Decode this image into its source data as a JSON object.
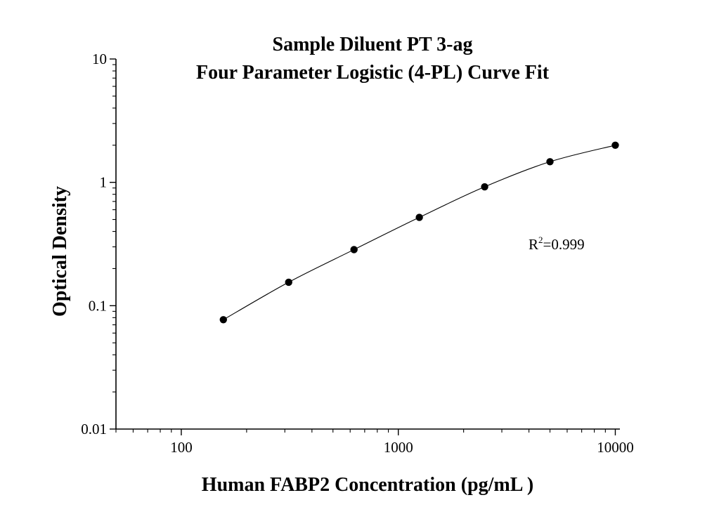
{
  "chart_data": {
    "type": "scatter",
    "title": [
      "Sample Diluent PT 3-ag",
      "Four Parameter Logistic (4-PL) Curve Fit"
    ],
    "xlabel": "Human FABP2 Concentration (pg/mL )",
    "ylabel": "Optical Density",
    "xscale": "log",
    "yscale": "log",
    "xlim": [
      50,
      10500
    ],
    "ylim": [
      0.01,
      10
    ],
    "xticks": [
      {
        "value": 100,
        "label": "100"
      },
      {
        "value": 1000,
        "label": "1000"
      },
      {
        "value": 10000,
        "label": "10000"
      }
    ],
    "yticks": [
      {
        "value": 0.01,
        "label": "0.01"
      },
      {
        "value": 0.1,
        "label": "0.1"
      },
      {
        "value": 1,
        "label": "1"
      },
      {
        "value": 10,
        "label": "10"
      }
    ],
    "grid": false,
    "series": [
      {
        "x": [
          156.25,
          312.5,
          625,
          1250,
          2500,
          5000,
          10000
        ],
        "y": [
          0.077,
          0.155,
          0.285,
          0.52,
          0.92,
          1.47,
          2.0
        ]
      }
    ],
    "fit_curve": {
      "model": "4-PL",
      "x_range": [
        156.25,
        10000
      ]
    },
    "annotation": {
      "text": "R",
      "superscript": "2",
      "suffix": "=0.999"
    }
  }
}
